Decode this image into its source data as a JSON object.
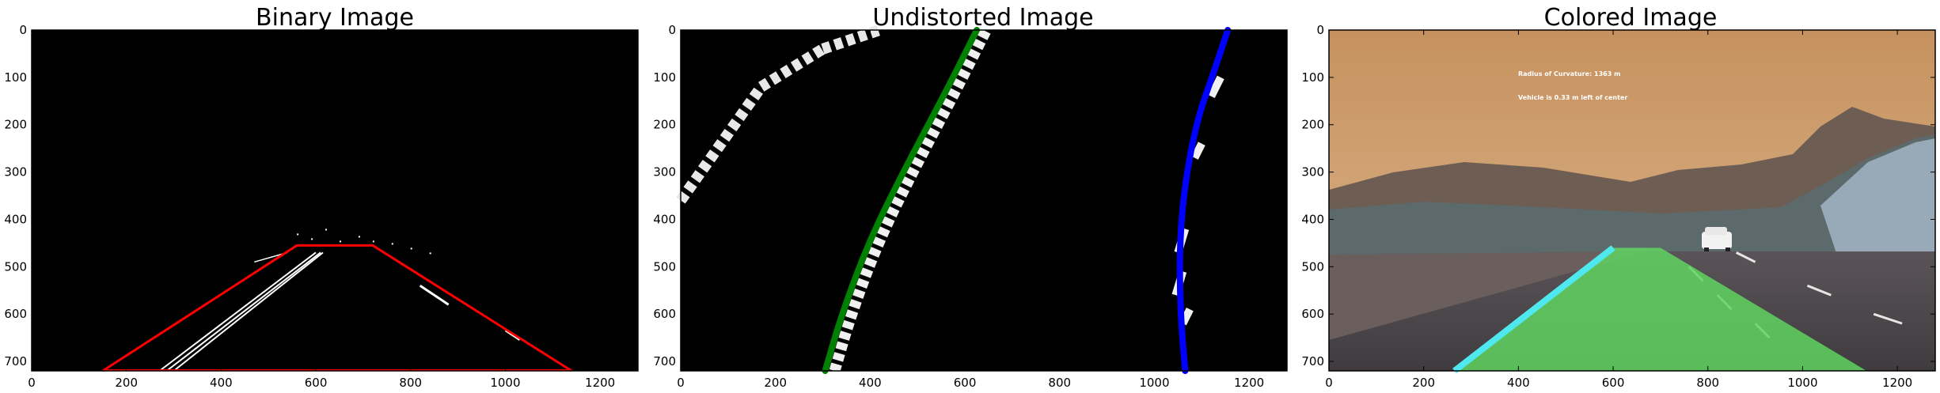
{
  "panels": [
    {
      "title": "Binary Image",
      "x_ticks": [
        "0",
        "200",
        "400",
        "600",
        "800",
        "1000",
        "1200"
      ],
      "y_ticks": [
        "0",
        "100",
        "200",
        "300",
        "400",
        "500",
        "600",
        "700"
      ]
    },
    {
      "title": "Undistorted Image",
      "x_ticks": [
        "0",
        "200",
        "400",
        "600",
        "800",
        "1000",
        "1200"
      ],
      "y_ticks": [
        "0",
        "100",
        "200",
        "300",
        "400",
        "500",
        "600",
        "700"
      ]
    },
    {
      "title": "Colored Image",
      "x_ticks": [
        "0",
        "200",
        "400",
        "600",
        "800",
        "1000",
        "1200"
      ],
      "y_ticks": [
        "0",
        "100",
        "200",
        "300",
        "400",
        "500",
        "600",
        "700"
      ],
      "overlay_lines": [
        "Radius of Curvature: 1363 m",
        "Vehicle is 0.33 m left of center"
      ]
    }
  ],
  "chart_data": [
    {
      "type": "image",
      "title": "Binary Image",
      "xlim": [
        0,
        1280
      ],
      "ylim": [
        720,
        0
      ],
      "polygon": {
        "color": "#ff0000",
        "points": [
          [
            150,
            720
          ],
          [
            560,
            455
          ],
          [
            720,
            455
          ],
          [
            1140,
            720
          ]
        ]
      }
    },
    {
      "type": "image",
      "title": "Undistorted Image",
      "xlim": [
        0,
        1280
      ],
      "ylim": [
        720,
        0
      ],
      "fits": [
        {
          "color": "#008000",
          "points": [
            [
              305,
              720
            ],
            [
              340,
              600
            ],
            [
              400,
              440
            ],
            [
              480,
              280
            ],
            [
              560,
              130
            ],
            [
              625,
              0
            ]
          ]
        },
        {
          "color": "#0000ff",
          "points": [
            [
              1065,
              720
            ],
            [
              1055,
              600
            ],
            [
              1053,
              450
            ],
            [
              1065,
              320
            ],
            [
              1090,
              190
            ],
            [
              1125,
              90
            ],
            [
              1155,
              0
            ]
          ]
        }
      ]
    },
    {
      "type": "image",
      "title": "Colored Image",
      "xlim": [
        0,
        1280
      ],
      "ylim": [
        720,
        0
      ],
      "lane": {
        "color": "#5fd45f",
        "points": [
          [
            265,
            720
          ],
          [
            600,
            460
          ],
          [
            700,
            460
          ],
          [
            1135,
            720
          ]
        ]
      },
      "lane_edge": {
        "color": "#4fe8ee"
      }
    }
  ]
}
